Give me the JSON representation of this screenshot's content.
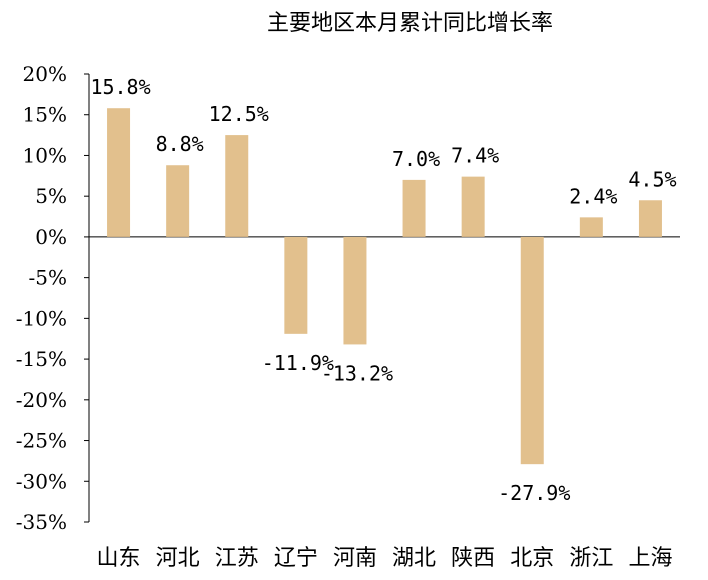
{
  "chart_data": {
    "type": "bar",
    "title": "主要地区本月累计同比增长率",
    "categories": [
      "山东",
      "河北",
      "江苏",
      "辽宁",
      "河南",
      "湖北",
      "陕西",
      "北京",
      "浙江",
      "上海"
    ],
    "values": [
      15.8,
      8.8,
      12.5,
      -11.9,
      -13.2,
      7.0,
      7.4,
      -27.9,
      2.4,
      4.5
    ],
    "data_labels": [
      "15.8%",
      "8.8%",
      "12.5%",
      "-11.9%",
      "-13.2%",
      "7.0%",
      "7.4%",
      "-27.9%",
      "2.4%",
      "4.5%"
    ],
    "ylim": [
      -35,
      20
    ],
    "yticks": [
      20,
      15,
      10,
      5,
      0,
      -5,
      -10,
      -15,
      -20,
      -25,
      -30,
      -35
    ],
    "ytick_labels": [
      "20%",
      "15%",
      "10%",
      "5%",
      "0%",
      "-5%",
      "-10%",
      "-15%",
      "-20%",
      "-25%",
      "-30%",
      "-35%"
    ],
    "xlabel": "",
    "ylabel": "",
    "grid": false,
    "bar_color": "#E2C08D"
  }
}
